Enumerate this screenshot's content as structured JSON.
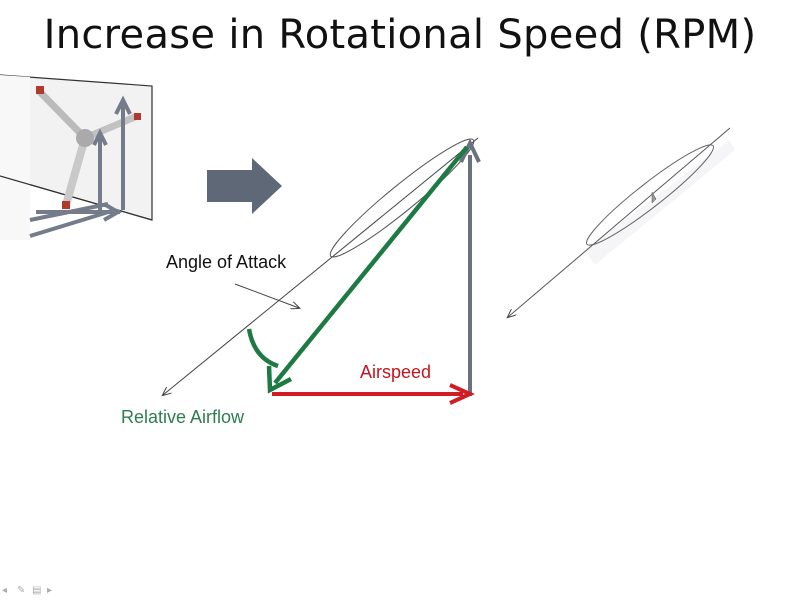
{
  "slide": {
    "title": "Increase in Rotational Speed (RPM)"
  },
  "labels": {
    "angle_of_attack": "Angle of Attack",
    "airspeed": "Airspeed",
    "relative_airflow": "Relative Airflow"
  },
  "colors": {
    "relative_airflow_vector": "#1d7a43",
    "airspeed_vector": "#d01c22",
    "rotor_vector": "#6a7180",
    "big_arrow": "#5f6877",
    "text_dark": "#111111"
  },
  "icons": {
    "next_arrow": "right-arrow",
    "turbine_thumbnail": "wind-turbine-image"
  }
}
